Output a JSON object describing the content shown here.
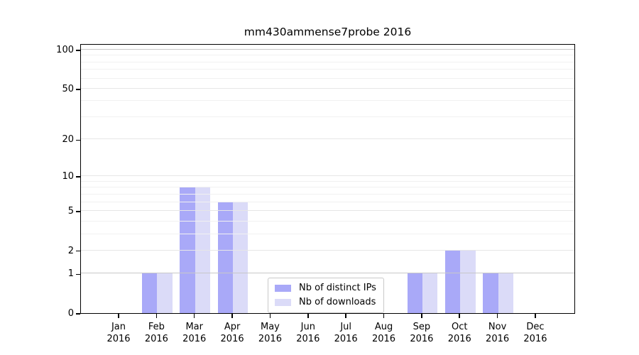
{
  "title": "mm430ammense7probe 2016",
  "chart_data": {
    "type": "bar",
    "title": "mm430ammense7probe 2016",
    "categories": [
      "Jan",
      "Feb",
      "Mar",
      "Apr",
      "May",
      "Jun",
      "Jul",
      "Aug",
      "Sep",
      "Oct",
      "Nov",
      "Dec"
    ],
    "year_label": "2016",
    "series": [
      {
        "name": "Nb of distinct IPs",
        "color": "#a9a9f8",
        "values": [
          0,
          1,
          8,
          6,
          0,
          0,
          0,
          0,
          1,
          2,
          1,
          0
        ]
      },
      {
        "name": "Nb of downloads",
        "color": "#dbdbf8",
        "values": [
          0,
          1,
          8,
          6,
          0,
          0,
          0,
          0,
          1,
          2,
          1,
          0
        ]
      }
    ],
    "y_axis": {
      "scale": "log(1+v)",
      "tick_labels": [
        0,
        1,
        2,
        5,
        10,
        20,
        50,
        100
      ],
      "minor_gridlines": [
        3,
        4,
        6,
        7,
        8,
        9,
        30,
        40,
        60,
        70,
        80,
        90
      ],
      "range": [
        0,
        112
      ]
    },
    "grid": "on",
    "legend_position": "lower center inside axes",
    "colors": {
      "grid_strong": "#c8c8c8",
      "grid_major": "#e6e6e6",
      "grid_minor": "#f1f1f1",
      "axis": "#000000"
    }
  }
}
